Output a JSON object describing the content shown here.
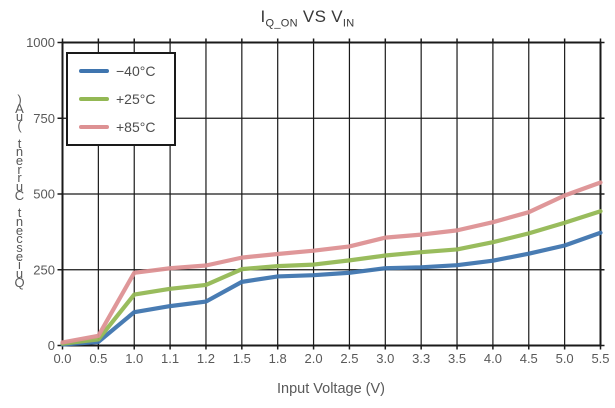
{
  "title": {
    "seg1": "I",
    "seg1_sub": "Q_ON",
    "seg2": " VS ",
    "seg3": "V",
    "seg3_sub": "IN",
    "plain": "I_Q_ON VS V_IN"
  },
  "axes": {
    "x_label": "Input Voltage (V)",
    "y_label": "Quiescent Current (uA)",
    "y_label_orientation": "vertical-stacked-bottom-to-top",
    "x_tick_labels": [
      "0.0",
      "0.5",
      "1.0",
      "1.1",
      "1.2",
      "1.5",
      "1.8",
      "2.0",
      "2.5",
      "3.0",
      "3.3",
      "3.5",
      "4.0",
      "4.5",
      "5.0",
      "5.5"
    ],
    "y_tick_labels": [
      "0",
      "250",
      "500",
      "750",
      "1000"
    ],
    "y_tick_values": [
      0,
      250,
      500,
      750,
      1000
    ]
  },
  "legend": {
    "position": "top-left",
    "entries": [
      {
        "label": "−40°C",
        "color": "#3f75af"
      },
      {
        "label": "+25°C",
        "color": "#93b854"
      },
      {
        "label": "+85°C",
        "color": "#dd9193"
      }
    ]
  },
  "style": {
    "frame_color": "#1a1a1a",
    "grid_color": "#1a1a1a",
    "tick_label_color": "#595959",
    "line_width": 4.2
  },
  "chart_data": {
    "type": "line",
    "title": "I_Q_ON VS V_IN",
    "xlabel": "Input Voltage (V)",
    "ylabel": "Quiescent Current (uA)",
    "x_categories": [
      "0.0",
      "0.5",
      "1.0",
      "1.1",
      "1.2",
      "1.5",
      "1.8",
      "2.0",
      "2.5",
      "3.0",
      "3.3",
      "3.5",
      "4.0",
      "4.5",
      "5.0",
      "5.5"
    ],
    "x_spacing": "categorical-equal",
    "ylim": [
      0,
      1000
    ],
    "grid": true,
    "legend_position": "top-left",
    "series": [
      {
        "name": "−40°C",
        "color": "#3f75af",
        "values": [
          3,
          12,
          110,
          130,
          145,
          210,
          228,
          232,
          240,
          255,
          258,
          265,
          280,
          303,
          330,
          372
        ]
      },
      {
        "name": "+25°C",
        "color": "#93b854",
        "values": [
          6,
          20,
          168,
          187,
          200,
          252,
          262,
          267,
          281,
          297,
          308,
          317,
          341,
          370,
          405,
          443
        ]
      },
      {
        "name": "+85°C",
        "color": "#dd9193",
        "values": [
          10,
          32,
          240,
          255,
          264,
          290,
          302,
          313,
          327,
          356,
          366,
          380,
          407,
          440,
          495,
          538
        ]
      }
    ]
  }
}
